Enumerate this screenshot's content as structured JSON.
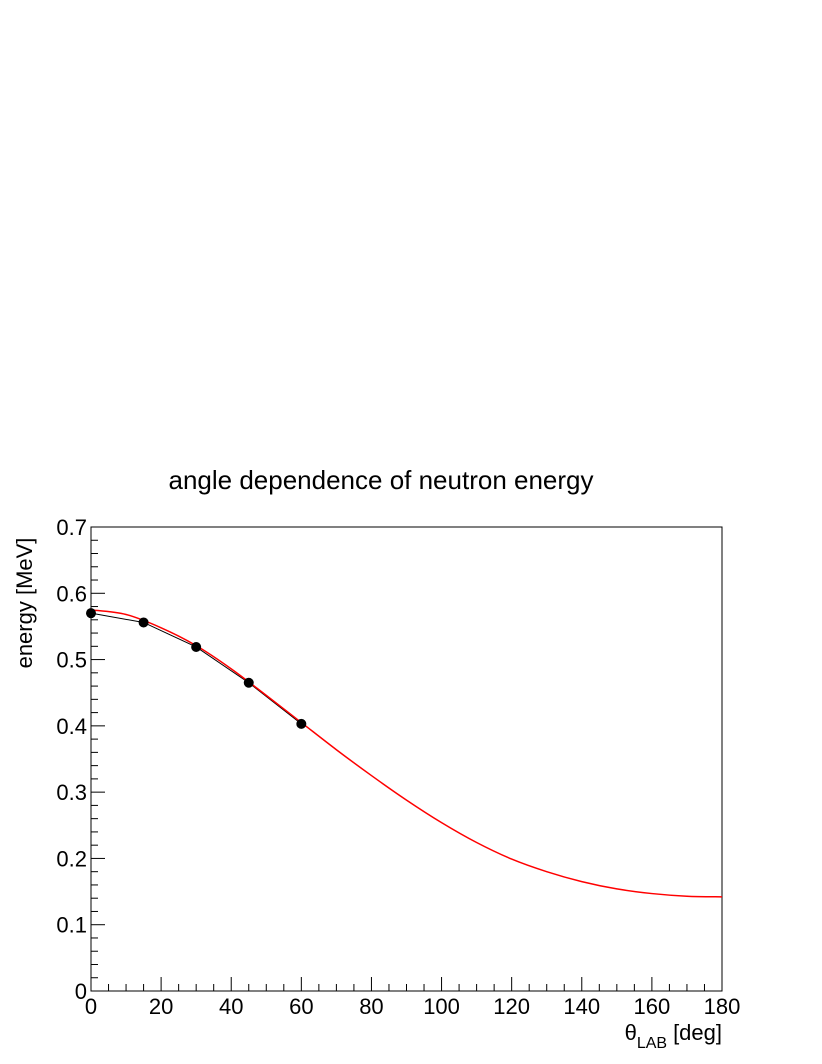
{
  "chart_data": {
    "type": "line",
    "title": "angle dependence of neutron energy",
    "xlabel": {
      "symbol": "θ",
      "subscript": "LAB",
      "unit": "[deg]"
    },
    "ylabel": "energy [MeV]",
    "xlim": [
      0,
      180
    ],
    "ylim": [
      0,
      0.7
    ],
    "xticks": [
      0,
      20,
      40,
      60,
      80,
      100,
      120,
      140,
      160,
      180
    ],
    "yticks": [
      0,
      0.1,
      0.2,
      0.3,
      0.4,
      0.5,
      0.6,
      0.7
    ],
    "grid": false,
    "series": [
      {
        "kind": "points-with-line",
        "color": "#000000",
        "x": [
          0,
          15,
          30,
          45,
          60
        ],
        "y": [
          0.57,
          0.556,
          0.519,
          0.465,
          0.403
        ]
      },
      {
        "kind": "curve",
        "color": "#ff0000",
        "x": [
          0,
          10,
          20,
          30,
          40,
          50,
          60,
          70,
          80,
          90,
          100,
          110,
          120,
          130,
          140,
          150,
          160,
          170,
          180
        ],
        "y": [
          0.575,
          0.568,
          0.548,
          0.521,
          0.486,
          0.446,
          0.405,
          0.364,
          0.325,
          0.288,
          0.254,
          0.224,
          0.199,
          0.18,
          0.165,
          0.154,
          0.147,
          0.143,
          0.142
        ]
      }
    ]
  }
}
